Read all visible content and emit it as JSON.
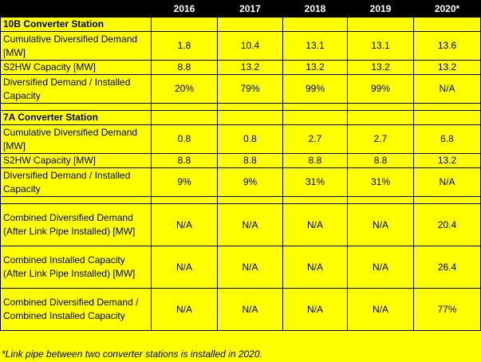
{
  "header": [
    "",
    "2016",
    "2017",
    "2018",
    "2019",
    "2020*"
  ],
  "sections": [
    {
      "title": "10B Converter Station",
      "rows": [
        {
          "label": "Cumulative Diversified Demand [MW]",
          "values": [
            "1.8",
            "10.4",
            "13.1",
            "13.1",
            "13.6"
          ]
        },
        {
          "label": "S2HW Capacity [MW]",
          "values": [
            "8.8",
            "13.2",
            "13.2",
            "13.2",
            "13.2"
          ]
        },
        {
          "label": "Diversified Demand / Installed Capacity",
          "values": [
            "20%",
            "79%",
            "99%",
            "99%",
            "N/A"
          ]
        }
      ]
    },
    {
      "title": "7A Converter Station",
      "rows": [
        {
          "label": "Cumulative Diversified Demand [MW]",
          "values": [
            "0.8",
            "0.8",
            "2.7",
            "2.7",
            "6.8"
          ]
        },
        {
          "label": "S2HW Capacity [MW]",
          "values": [
            "8.8",
            "8.8",
            "8.8",
            "8.8",
            "13.2"
          ]
        },
        {
          "label": "Diversified Demand / Installed Capacity",
          "values": [
            "9%",
            "9%",
            "31%",
            "31%",
            "N/A"
          ]
        }
      ]
    },
    {
      "title": "",
      "rows": [
        {
          "label": "Combined Diversified Demand (After Link Pipe Installed) [MW]",
          "values": [
            "N/A",
            "N/A",
            "N/A",
            "N/A",
            "20.4"
          ]
        },
        {
          "label": "Combined Installed Capacity (After Link Pipe Installed) [MW]",
          "values": [
            "N/A",
            "N/A",
            "N/A",
            "N/A",
            "26.4"
          ]
        },
        {
          "label": "Combined Diversified Demand / Combined Installed Capacity",
          "values": [
            "N/A",
            "N/A",
            "N/A",
            "N/A",
            "77%"
          ]
        }
      ]
    }
  ],
  "footnote": "*Link pipe between two converter stations is installed in 2020."
}
